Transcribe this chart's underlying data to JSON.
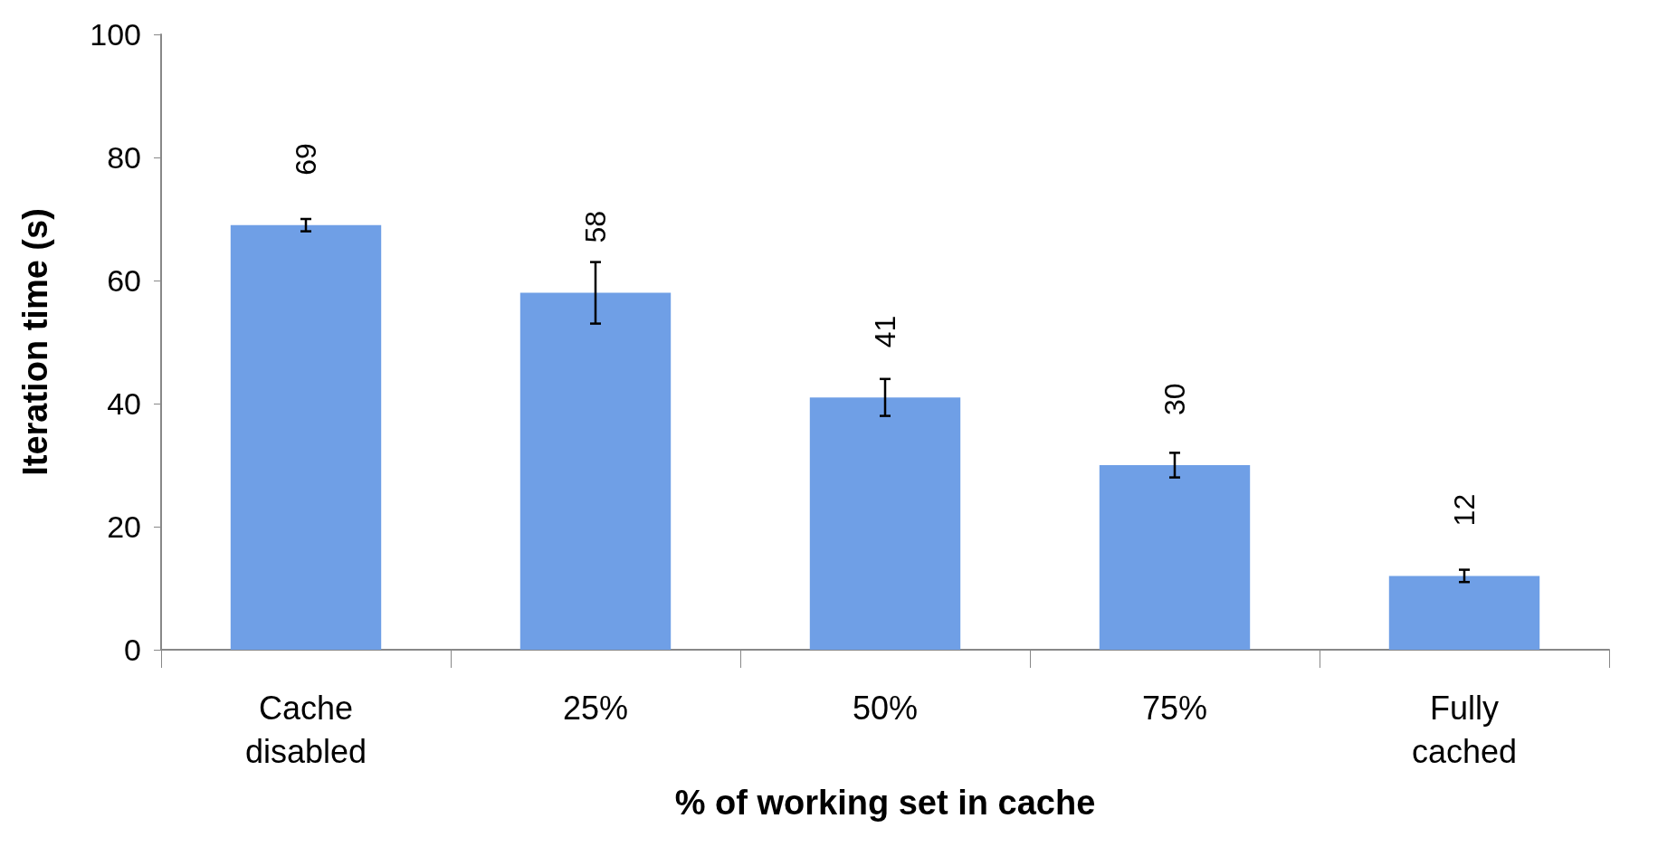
{
  "chart_data": {
    "type": "bar",
    "xlabel": "% of working set in cache",
    "ylabel": "Iteration time (s)",
    "categories": [
      "Cache\ndisabled",
      "25%",
      "50%",
      "75%",
      "Fully\ncached"
    ],
    "values": [
      69,
      58,
      41,
      30,
      12
    ],
    "errors": [
      1,
      5,
      3,
      2,
      1
    ],
    "color": "#6f9fe6",
    "ylim": [
      0,
      100
    ],
    "yticks": [
      0,
      20,
      40,
      60,
      80,
      100
    ],
    "grid": false,
    "data_labels": true
  }
}
